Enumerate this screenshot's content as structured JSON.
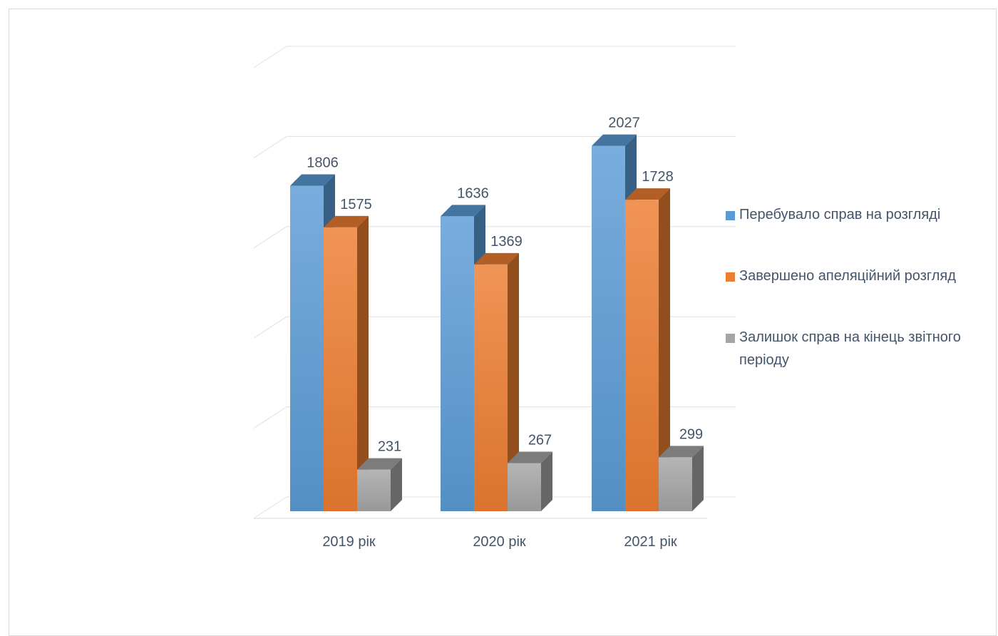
{
  "chart_data": {
    "type": "bar",
    "title": "",
    "xlabel": "",
    "ylabel": "",
    "categories": [
      "2019 рік",
      "2020 рік",
      "2021 рік"
    ],
    "series": [
      {
        "name": "Перебувало справ на розгляді",
        "values": [
          1806,
          1636,
          2027
        ],
        "color": "#5b9bd5"
      },
      {
        "name": "Завершено апеляційний розгляд",
        "values": [
          1575,
          1369,
          1728
        ],
        "color": "#ed7d31"
      },
      {
        "name": "Залишок справ на кінець звітного періоду",
        "values": [
          231,
          267,
          299
        ],
        "color": "#a5a5a5"
      }
    ],
    "ylim": [
      0,
      2500
    ],
    "grid": true,
    "legend": "right",
    "style": "3d-clustered-column"
  }
}
